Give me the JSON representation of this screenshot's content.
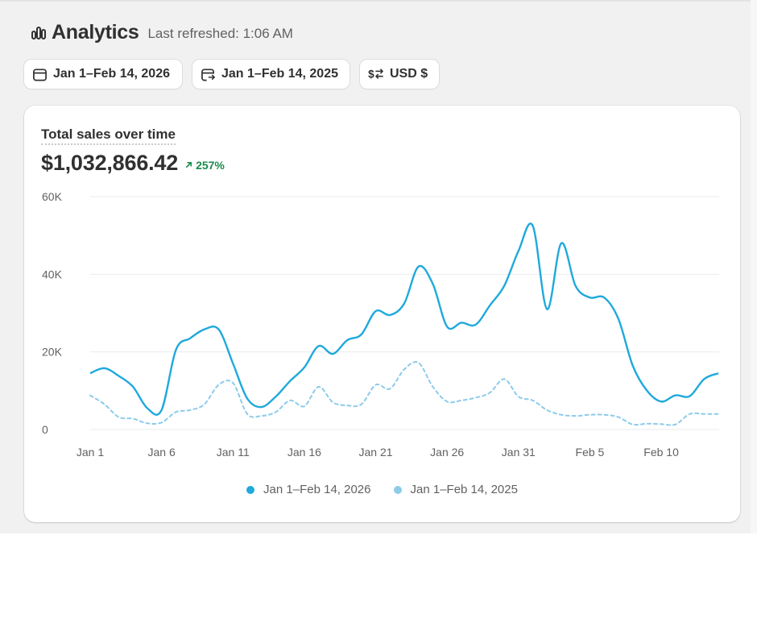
{
  "header": {
    "title": "Analytics",
    "last_refreshed": "Last refreshed: 1:06 AM"
  },
  "toolbar": {
    "date_range": "Jan 1–Feb 14, 2026",
    "compare_range": "Jan 1–Feb 14, 2025",
    "currency": "USD $"
  },
  "card": {
    "title": "Total sales over time",
    "total": "$1,032,866.42",
    "change": "257%"
  },
  "colors": {
    "current": "#1fa9dc",
    "previous": "#8dcbea",
    "positive": "#1a8a4e",
    "grid": "#ebebeb"
  },
  "icons": [
    "analytics-icon",
    "calendar-icon",
    "calendar-compare-icon",
    "currency-exchange-icon",
    "arrow-up-right-icon"
  ],
  "chart_data": {
    "type": "line",
    "title": "Total sales over time",
    "xlabel": "",
    "ylabel": "",
    "ylim": [
      0,
      60000
    ],
    "y_ticks": [
      "0",
      "20K",
      "40K",
      "60K"
    ],
    "y_tick_values": [
      0,
      20000,
      40000,
      60000
    ],
    "x_ticks": [
      "Jan 1",
      "Jan 6",
      "Jan 11",
      "Jan 16",
      "Jan 21",
      "Jan 26",
      "Jan 31",
      "Feb 5",
      "Feb 10"
    ],
    "x_tick_index": [
      0,
      5,
      10,
      15,
      20,
      25,
      30,
      35,
      40
    ],
    "legend_position": "bottom-center",
    "grid": true,
    "series": [
      {
        "name": "Jan 1–Feb 14, 2026",
        "style": "solid",
        "values": [
          14500,
          15800,
          13800,
          11000,
          5500,
          5000,
          20500,
          23500,
          25800,
          25800,
          17000,
          8000,
          5800,
          8500,
          12500,
          16000,
          21500,
          19500,
          23000,
          24500,
          30500,
          29500,
          32500,
          42000,
          37500,
          26500,
          27500,
          27000,
          32000,
          37000,
          46000,
          52500,
          31000,
          48000,
          37000,
          34000,
          34000,
          28500,
          16500,
          10000,
          7200,
          8800,
          8600,
          13000,
          14500
        ]
      },
      {
        "name": "Jan 1–Feb 14, 2025",
        "style": "dashed",
        "values": [
          8800,
          6500,
          3200,
          2800,
          1600,
          1800,
          4500,
          5000,
          6500,
          11500,
          12000,
          4000,
          3500,
          4500,
          7500,
          6000,
          11000,
          7000,
          6200,
          6500,
          11500,
          10500,
          15500,
          17200,
          11000,
          7200,
          7500,
          8200,
          9500,
          13000,
          8500,
          7500,
          5000,
          3800,
          3500,
          3800,
          3800,
          3200,
          1300,
          1500,
          1400,
          1300,
          4000,
          4000,
          4000
        ]
      }
    ]
  }
}
